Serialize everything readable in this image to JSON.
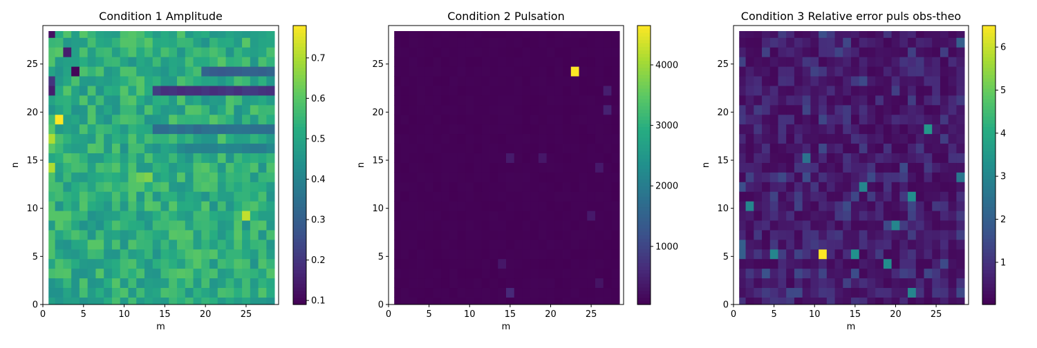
{
  "chart_data": [
    {
      "type": "heatmap",
      "title": "Condition 1 Amplitude",
      "xlabel": "m",
      "ylabel": "n",
      "xlim": [
        0,
        29
      ],
      "ylim": [
        0,
        29
      ],
      "x_ticks": [
        0,
        5,
        10,
        15,
        20,
        25
      ],
      "y_ticks": [
        0,
        5,
        10,
        15,
        20,
        25
      ],
      "cells": {
        "m_range": [
          1,
          28
        ],
        "n_range": [
          0,
          28
        ]
      },
      "colorbar": {
        "min": 0.09,
        "max": 0.78,
        "ticks": [
          0.1,
          0.2,
          0.3,
          0.4,
          0.5,
          0.6,
          0.7
        ]
      },
      "colormap": "viridis",
      "base_value": 0.52,
      "spread": 0.08,
      "highlights": [
        {
          "m": 2,
          "n": 19,
          "value": 0.78
        },
        {
          "m": 1,
          "n": 17,
          "value": 0.7
        },
        {
          "m": 0,
          "n": 14,
          "value": 0.7
        },
        {
          "m": 25,
          "n": 9,
          "value": 0.72
        },
        {
          "m": 13,
          "n": 13,
          "value": 0.65
        },
        {
          "m": 12,
          "n": 13,
          "value": 0.63
        },
        {
          "m": 1,
          "n": 28,
          "value": 0.12
        },
        {
          "m": 4,
          "n": 24,
          "value": 0.1
        },
        {
          "m": 3,
          "n": 26,
          "value": 0.15
        },
        {
          "m": 1,
          "n": 22,
          "value": 0.15
        },
        {
          "m": 0,
          "n": 23,
          "value": 0.2
        }
      ],
      "bands": [
        {
          "n": 22,
          "from_m": 14,
          "value": 0.2
        },
        {
          "n": 24,
          "from_m": 20,
          "value": 0.3
        },
        {
          "n": 18,
          "from_m": 14,
          "value": 0.35
        },
        {
          "n": 16,
          "from_m": 17,
          "value": 0.4
        }
      ]
    },
    {
      "type": "heatmap",
      "title": "Condition 2 Pulsation",
      "xlabel": "m",
      "ylabel": "n",
      "xlim": [
        0,
        29
      ],
      "ylim": [
        0,
        29
      ],
      "x_ticks": [
        0,
        5,
        10,
        15,
        20,
        25
      ],
      "y_ticks": [
        0,
        5,
        10,
        15,
        20,
        25
      ],
      "cells": {
        "m_range": [
          1,
          28
        ],
        "n_range": [
          0,
          28
        ]
      },
      "colorbar": {
        "min": 40,
        "max": 4650,
        "ticks": [
          1000,
          2000,
          3000,
          4000
        ]
      },
      "colormap": "viridis",
      "base_value": 60,
      "spread": 20,
      "highlights": [
        {
          "m": 23,
          "n": 24,
          "value": 4650
        },
        {
          "m": 15,
          "n": 1,
          "value": 600
        },
        {
          "m": 27,
          "n": 20,
          "value": 500
        },
        {
          "m": 27,
          "n": 22,
          "value": 450
        },
        {
          "m": 15,
          "n": 15,
          "value": 400
        },
        {
          "m": 19,
          "n": 15,
          "value": 350
        },
        {
          "m": 25,
          "n": 9,
          "value": 380
        },
        {
          "m": 14,
          "n": 4,
          "value": 350
        },
        {
          "m": 26,
          "n": 14,
          "value": 380
        },
        {
          "m": 26,
          "n": 2,
          "value": 300
        }
      ],
      "bands": []
    },
    {
      "type": "heatmap",
      "title": "Condition 3 Relative error puls obs-theo",
      "xlabel": "m",
      "ylabel": "n",
      "xlim": [
        0,
        29
      ],
      "ylim": [
        0,
        29
      ],
      "x_ticks": [
        0,
        5,
        10,
        15,
        20,
        25
      ],
      "y_ticks": [
        0,
        5,
        10,
        15,
        20,
        25
      ],
      "cells": {
        "m_range": [
          1,
          28
        ],
        "n_range": [
          0,
          28
        ]
      },
      "colorbar": {
        "min": 0.02,
        "max": 6.5,
        "ticks": [
          1,
          2,
          3,
          4,
          5,
          6
        ]
      },
      "colormap": "viridis",
      "base_value": 0.4,
      "spread": 0.35,
      "highlights": [
        {
          "m": 11,
          "n": 5,
          "value": 6.5
        },
        {
          "m": 24,
          "n": 18,
          "value": 3.5
        },
        {
          "m": 22,
          "n": 11,
          "value": 3.2
        },
        {
          "m": 16,
          "n": 12,
          "value": 3.0
        },
        {
          "m": 2,
          "n": 10,
          "value": 3.0
        },
        {
          "m": 20,
          "n": 8,
          "value": 3.0
        },
        {
          "m": 15,
          "n": 5,
          "value": 3.3
        },
        {
          "m": 19,
          "n": 4,
          "value": 3.2
        },
        {
          "m": 22,
          "n": 1,
          "value": 3.0
        },
        {
          "m": 0,
          "n": 5,
          "value": 2.0
        },
        {
          "m": 0,
          "n": 6,
          "value": 2.0
        },
        {
          "m": 9,
          "n": 15,
          "value": 2.5
        },
        {
          "m": 28,
          "n": 27,
          "value": 2.0
        },
        {
          "m": 5,
          "n": 5,
          "value": 3.0
        },
        {
          "m": 28,
          "n": 13,
          "value": 2.6
        }
      ],
      "bands": []
    }
  ]
}
